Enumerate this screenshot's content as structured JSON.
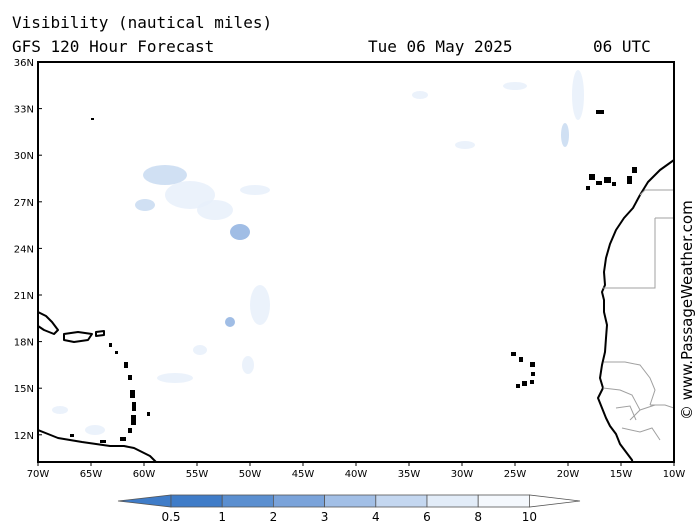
{
  "title": "Visibility (nautical miles)",
  "subtitle": "GFS 120 Hour Forecast",
  "date": "Tue 06 May 2025",
  "time": "06 UTC",
  "watermark": "© www.PassageWeather.com",
  "lat_labels": [
    "36N",
    "33N",
    "30N",
    "27N",
    "24N",
    "21N",
    "18N",
    "15N",
    "12N"
  ],
  "lon_labels": [
    "70W",
    "65W",
    "60W",
    "55W",
    "50W",
    "45W",
    "40W",
    "35W",
    "30W",
    "25W",
    "20W",
    "15W",
    "10W"
  ],
  "legend": {
    "labels": [
      "0.5",
      "1",
      "2",
      "3",
      "4",
      "6",
      "8",
      "10"
    ],
    "colors": [
      "#3f7cc8",
      "#5b8fd0",
      "#7aa3da",
      "#a2bfe6",
      "#c4d7f0",
      "#e2ecf8",
      "#f4f8fd"
    ]
  },
  "colors": {
    "fog_light": "#e8f0fa",
    "fog_medium": "#c8daf1",
    "fog_dense": "#8fb1e0",
    "border": "#a0a0a0",
    "coast": "#000000"
  }
}
